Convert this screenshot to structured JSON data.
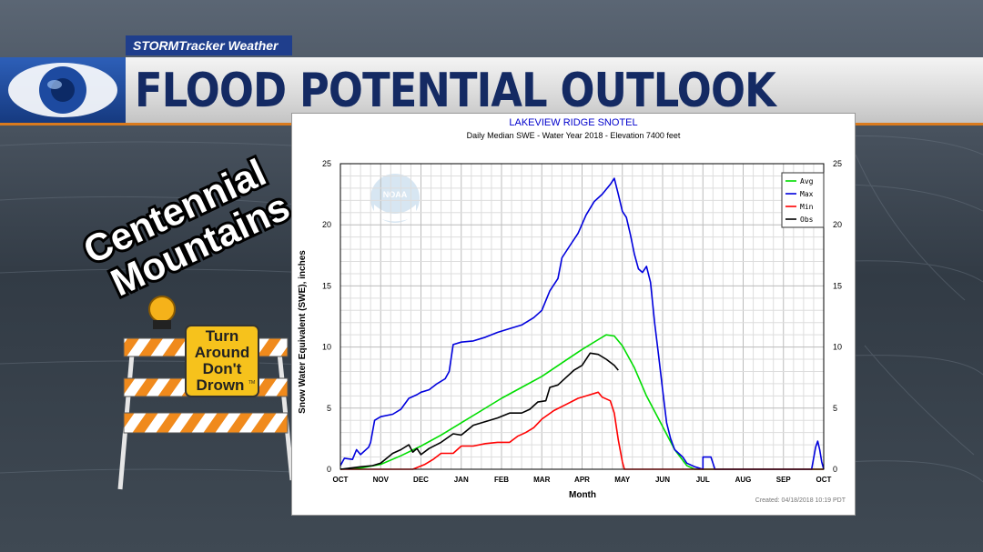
{
  "broadcast": {
    "kicker": "STORMTracker Weather",
    "title": "FLOOD POTENTIAL OUTLOOK",
    "region_line1": "Centennial",
    "region_line2": "Mountains",
    "sign_line1": "Turn",
    "sign_line2": "Around",
    "sign_line3": "Don't",
    "sign_line4": "Drown",
    "sign_tm": "TM"
  },
  "colors": {
    "title": "#142a63",
    "kicker_bg": "#1f3e8c",
    "accent": "#d97a1e",
    "avg": "#00dd00",
    "max": "#0000dd",
    "min": "#ff0000",
    "obs": "#000000"
  },
  "chart_data": {
    "type": "line",
    "title": "LAKEVIEW RIDGE SNOTEL",
    "subtitle": "Daily Median SWE - Water Year 2018 -  Elevation 7400 feet",
    "xlabel": "Month",
    "ylabel": "Snow Water Equivalent (SWE),  inches",
    "watermark": "NOAA",
    "footer": "Created: 04/18/2018 10:19 PDT",
    "categories": [
      "OCT",
      "NOV",
      "DEC",
      "JAN",
      "FEB",
      "MAR",
      "APR",
      "MAY",
      "JUN",
      "JUL",
      "AUG",
      "SEP",
      "OCT"
    ],
    "ylim": [
      0,
      25
    ],
    "yticks": [
      0,
      5,
      10,
      15,
      20,
      25
    ],
    "grid": true,
    "legend_position": "top-right",
    "series": [
      {
        "name": "Avg",
        "color": "#00dd00",
        "points": [
          [
            0,
            0
          ],
          [
            0.5,
            0.1
          ],
          [
            1,
            0.4
          ],
          [
            1.5,
            1.1
          ],
          [
            2,
            1.9
          ],
          [
            2.5,
            2.8
          ],
          [
            3,
            3.8
          ],
          [
            3.5,
            4.8
          ],
          [
            4,
            5.8
          ],
          [
            4.5,
            6.7
          ],
          [
            5,
            7.6
          ],
          [
            5.5,
            8.7
          ],
          [
            6,
            9.8
          ],
          [
            6.4,
            10.6
          ],
          [
            6.6,
            11
          ],
          [
            6.8,
            10.9
          ],
          [
            7,
            10.1
          ],
          [
            7.3,
            8.3
          ],
          [
            7.6,
            6
          ],
          [
            8,
            3.5
          ],
          [
            8.3,
            1.6
          ],
          [
            8.6,
            0.3
          ],
          [
            8.8,
            0
          ],
          [
            12,
            0
          ]
        ]
      },
      {
        "name": "Max",
        "color": "#0000dd",
        "points": [
          [
            0,
            0.3
          ],
          [
            0.1,
            0.9
          ],
          [
            0.3,
            0.8
          ],
          [
            0.4,
            1.6
          ],
          [
            0.5,
            1.2
          ],
          [
            0.7,
            1.8
          ],
          [
            0.75,
            2.2
          ],
          [
            0.85,
            4
          ],
          [
            1,
            4.3
          ],
          [
            1.3,
            4.5
          ],
          [
            1.5,
            4.9
          ],
          [
            1.7,
            5.8
          ],
          [
            1.9,
            6.1
          ],
          [
            2,
            6.3
          ],
          [
            2.2,
            6.5
          ],
          [
            2.4,
            7.0
          ],
          [
            2.6,
            7.4
          ],
          [
            2.7,
            8
          ],
          [
            2.8,
            10.2
          ],
          [
            3,
            10.4
          ],
          [
            3.3,
            10.5
          ],
          [
            3.6,
            10.8
          ],
          [
            3.9,
            11.2
          ],
          [
            4.2,
            11.5
          ],
          [
            4.5,
            11.8
          ],
          [
            4.8,
            12.4
          ],
          [
            5,
            13
          ],
          [
            5.2,
            14.6
          ],
          [
            5.4,
            15.6
          ],
          [
            5.5,
            17.3
          ],
          [
            5.7,
            18.3
          ],
          [
            5.9,
            19.3
          ],
          [
            6.1,
            20.8
          ],
          [
            6.3,
            21.9
          ],
          [
            6.5,
            22.5
          ],
          [
            6.7,
            23.3
          ],
          [
            6.8,
            23.8
          ],
          [
            6.9,
            22.5
          ],
          [
            7,
            21.1
          ],
          [
            7.1,
            20.6
          ],
          [
            7.2,
            19.2
          ],
          [
            7.3,
            17.6
          ],
          [
            7.4,
            16.4
          ],
          [
            7.5,
            16.1
          ],
          [
            7.6,
            16.6
          ],
          [
            7.7,
            15.3
          ],
          [
            7.8,
            12.0
          ],
          [
            7.9,
            9.3
          ],
          [
            8,
            6.5
          ],
          [
            8.1,
            3.8
          ],
          [
            8.2,
            2.5
          ],
          [
            8.3,
            1.6
          ],
          [
            8.4,
            1.3
          ],
          [
            8.5,
            1
          ],
          [
            8.6,
            0.5
          ],
          [
            8.8,
            0.2
          ],
          [
            9,
            0
          ],
          [
            9,
            1
          ],
          [
            9.2,
            1
          ],
          [
            9.3,
            0
          ],
          [
            11.7,
            0
          ],
          [
            11.8,
            1.8
          ],
          [
            11.85,
            2.3
          ],
          [
            11.9,
            1.6
          ],
          [
            11.95,
            0.6
          ],
          [
            12,
            0
          ]
        ]
      },
      {
        "name": "Min",
        "color": "#ff0000",
        "points": [
          [
            0,
            0
          ],
          [
            1.8,
            0
          ],
          [
            2.1,
            0.4
          ],
          [
            2.3,
            0.8
          ],
          [
            2.5,
            1.3
          ],
          [
            2.8,
            1.3
          ],
          [
            3,
            1.9
          ],
          [
            3.3,
            1.9
          ],
          [
            3.6,
            2.1
          ],
          [
            3.9,
            2.2
          ],
          [
            4.2,
            2.2
          ],
          [
            4.4,
            2.7
          ],
          [
            4.6,
            3
          ],
          [
            4.8,
            3.4
          ],
          [
            5,
            4.1
          ],
          [
            5.3,
            4.8
          ],
          [
            5.6,
            5.3
          ],
          [
            5.9,
            5.8
          ],
          [
            6.2,
            6.1
          ],
          [
            6.4,
            6.3
          ],
          [
            6.5,
            5.9
          ],
          [
            6.7,
            5.6
          ],
          [
            6.8,
            4.6
          ],
          [
            6.9,
            2.4
          ],
          [
            7,
            0.6
          ],
          [
            7.05,
            0
          ],
          [
            12,
            0
          ]
        ]
      },
      {
        "name": "Obs",
        "color": "#000000",
        "points": [
          [
            0,
            0
          ],
          [
            0.5,
            0.2
          ],
          [
            0.8,
            0.3
          ],
          [
            1,
            0.5
          ],
          [
            1.3,
            1.3
          ],
          [
            1.5,
            1.6
          ],
          [
            1.7,
            2
          ],
          [
            1.8,
            1.4
          ],
          [
            1.9,
            1.7
          ],
          [
            2,
            1.2
          ],
          [
            2.2,
            1.7
          ],
          [
            2.5,
            2.2
          ],
          [
            2.8,
            2.9
          ],
          [
            3,
            2.8
          ],
          [
            3.3,
            3.6
          ],
          [
            3.6,
            3.9
          ],
          [
            3.9,
            4.2
          ],
          [
            4.2,
            4.6
          ],
          [
            4.5,
            4.6
          ],
          [
            4.7,
            4.9
          ],
          [
            4.9,
            5.5
          ],
          [
            5.1,
            5.6
          ],
          [
            5.2,
            6.7
          ],
          [
            5.4,
            6.9
          ],
          [
            5.6,
            7.5
          ],
          [
            5.8,
            8.1
          ],
          [
            6,
            8.5
          ],
          [
            6.2,
            9.5
          ],
          [
            6.4,
            9.4
          ],
          [
            6.6,
            9
          ],
          [
            6.8,
            8.5
          ],
          [
            6.9,
            8.1
          ]
        ]
      }
    ]
  }
}
